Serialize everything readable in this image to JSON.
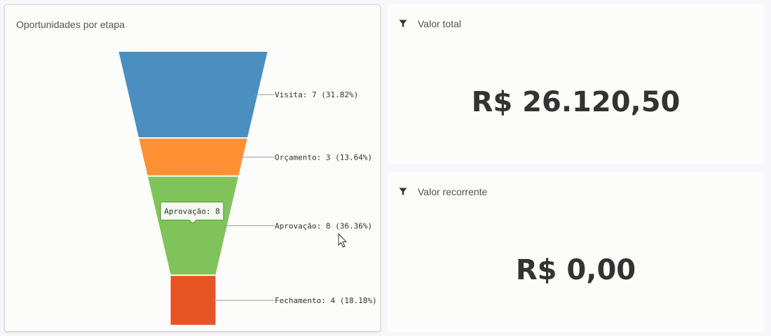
{
  "funnel_card": {
    "title": "Oportunidades por etapa"
  },
  "chart_data": {
    "type": "funnel",
    "title": "Oportunidades por etapa",
    "categories": [
      "Visita",
      "Orçamento",
      "Aprovação",
      "Fechamento"
    ],
    "values": [
      7,
      3,
      8,
      4
    ],
    "percent_labels": [
      "31.82%",
      "13.64%",
      "36.36%",
      "18.18%"
    ],
    "labels": [
      "Visita: 7 (31.82%)",
      "Orçamento: 3 (13.64%)",
      "Aprovação: 8 (36.36%)",
      "Fechamento: 4 (18.18%)"
    ],
    "colors": [
      "#4a8fbf",
      "#ff9034",
      "#80c35a",
      "#e75424"
    ],
    "tooltip": {
      "category": "Aprovação",
      "text": "Aprovação: 8"
    }
  },
  "total_card": {
    "title": "Valor total",
    "icon": "filter-icon",
    "value": "R$ 26.120,50"
  },
  "recurring_card": {
    "title": "Valor recorrente",
    "icon": "filter-icon",
    "value": "R$ 0,00"
  }
}
